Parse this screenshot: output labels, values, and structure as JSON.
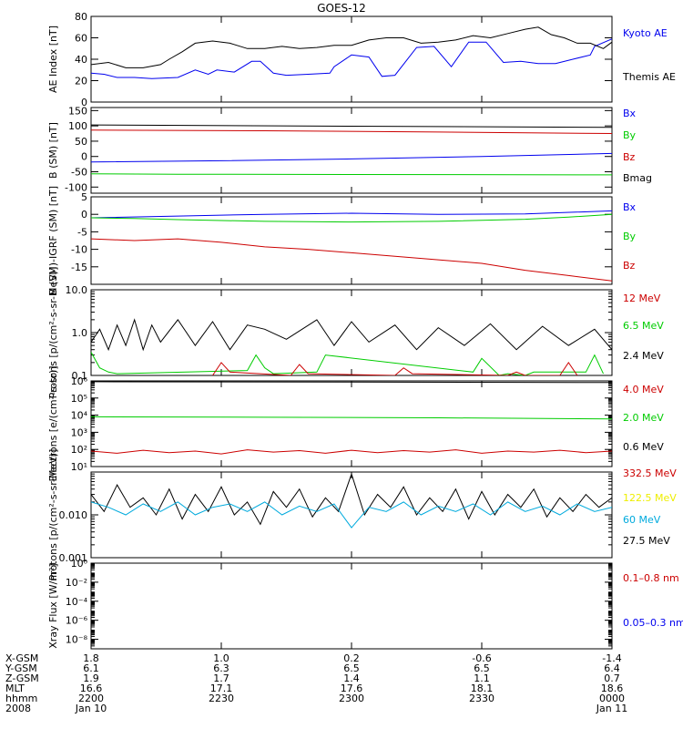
{
  "title": "GOES-12",
  "colors": {
    "black": "#000000",
    "blue": "#0000ee",
    "green": "#00cc00",
    "red": "#cc0000",
    "yellow": "#eeee00",
    "cyan": "#00aadd"
  },
  "chart_data": [
    {
      "type": "line",
      "id": "ae",
      "ylabel": "AE Index [nT]",
      "ylim": [
        0,
        80
      ],
      "yscale": "linear",
      "yticks": [
        "0",
        "20",
        "40",
        "60",
        "80"
      ],
      "series": [
        {
          "name": "Kyoto AE",
          "color": "blue",
          "x": [
            0,
            3,
            6,
            10,
            14,
            20,
            24,
            27,
            29,
            33,
            37,
            39,
            42,
            45,
            50,
            55,
            56,
            60,
            64,
            67,
            70,
            75,
            79,
            83,
            87,
            91,
            95,
            99,
            103,
            107,
            111,
            115,
            116,
            120
          ],
          "values": [
            27,
            26,
            23,
            23,
            22,
            23,
            30,
            26,
            30,
            28,
            38,
            38,
            27,
            25,
            26,
            27,
            33,
            44,
            42,
            24,
            25,
            51,
            52,
            33,
            56,
            56,
            37,
            38,
            36,
            36,
            40,
            44,
            52,
            59
          ]
        },
        {
          "name": "Themis AE",
          "color": "black",
          "x": [
            0,
            4,
            8,
            12,
            16,
            18,
            21,
            24,
            28,
            32,
            36,
            40,
            44,
            48,
            52,
            56,
            60,
            64,
            68,
            72,
            76,
            80,
            84,
            88,
            92,
            96,
            100,
            103,
            106,
            109,
            112,
            115,
            118,
            120
          ],
          "values": [
            35,
            37,
            32,
            32,
            35,
            40,
            47,
            55,
            57,
            55,
            50,
            50,
            52,
            50,
            51,
            53,
            53,
            58,
            60,
            60,
            55,
            56,
            58,
            62,
            60,
            64,
            68,
            70,
            63,
            60,
            55,
            55,
            50,
            56
          ]
        }
      ],
      "legend": [
        {
          "label": "Kyoto AE",
          "color": "blue"
        },
        {
          "label": "Themis AE",
          "color": "black"
        }
      ]
    },
    {
      "type": "line",
      "id": "bsm",
      "ylabel": "B (SM) [nT]",
      "ylim": [
        -120,
        160
      ],
      "yscale": "linear",
      "yticks": [
        "-100",
        "-50",
        "0",
        "50",
        "100",
        "150"
      ],
      "series": [
        {
          "name": "Bmag",
          "color": "black",
          "x": [
            0,
            60,
            120
          ],
          "values": [
            103,
            99,
            95
          ]
        },
        {
          "name": "Bx",
          "color": "blue",
          "x": [
            0,
            30,
            60,
            90,
            120
          ],
          "values": [
            -18,
            -14,
            -8,
            0,
            10
          ]
        },
        {
          "name": "By",
          "color": "green",
          "x": [
            0,
            20,
            120
          ],
          "values": [
            -57,
            -58,
            -60
          ]
        },
        {
          "name": "Bz",
          "color": "red",
          "x": [
            0,
            40,
            80,
            120
          ],
          "values": [
            86,
            84,
            80,
            75
          ]
        }
      ],
      "legend": [
        {
          "label": "Bx",
          "color": "blue"
        },
        {
          "label": "By",
          "color": "green"
        },
        {
          "label": "Bz",
          "color": "red"
        },
        {
          "label": "Bmag",
          "color": "black"
        }
      ]
    },
    {
      "type": "line",
      "id": "bigrf",
      "ylabel": "B (SM)-IGRF (SM) [nT]",
      "ylim": [
        -20,
        5
      ],
      "yscale": "linear",
      "yticks": [
        "-15",
        "-10",
        "-5",
        "0",
        "5"
      ],
      "series": [
        {
          "name": "Bx",
          "color": "blue",
          "x": [
            0,
            20,
            40,
            60,
            80,
            100,
            120
          ],
          "values": [
            -1,
            -0.5,
            0,
            0.3,
            0,
            0.1,
            1
          ]
        },
        {
          "name": "By",
          "color": "green",
          "x": [
            0,
            10,
            20,
            40,
            60,
            80,
            100,
            110,
            120
          ],
          "values": [
            -1,
            -1.2,
            -1.5,
            -2,
            -2.2,
            -2,
            -1.4,
            -0.8,
            0
          ]
        },
        {
          "name": "Bz",
          "color": "red",
          "x": [
            0,
            10,
            20,
            30,
            40,
            50,
            60,
            70,
            80,
            90,
            100,
            110,
            120
          ],
          "values": [
            -7,
            -7.5,
            -7,
            -8,
            -9.3,
            -10,
            -11,
            -12,
            -13,
            -14,
            -16,
            -17.5,
            -19
          ]
        }
      ],
      "legend": [
        {
          "label": "Bx",
          "color": "blue"
        },
        {
          "label": "By",
          "color": "green"
        },
        {
          "label": "Bz",
          "color": "red"
        }
      ]
    },
    {
      "type": "line",
      "id": "protons1",
      "ylabel": "Protons [p/(cm²-s-sr-MeV)]",
      "ylim": [
        0.1,
        10
      ],
      "yscale": "log",
      "yticks": [
        "0.1",
        "1.0",
        "10.0"
      ],
      "series": [
        {
          "name": "2.4 MeV",
          "color": "black",
          "x": [
            0,
            2,
            4,
            6,
            8,
            10,
            12,
            14,
            16,
            20,
            24,
            28,
            32,
            36,
            40,
            45,
            52,
            56,
            60,
            64,
            70,
            75,
            80,
            86,
            92,
            98,
            104,
            110,
            116,
            120
          ],
          "values": [
            0.6,
            1.2,
            0.4,
            1.5,
            0.5,
            2.0,
            0.4,
            1.5,
            0.6,
            2.0,
            0.5,
            1.8,
            0.4,
            1.5,
            1.2,
            0.7,
            2.0,
            0.5,
            1.8,
            0.6,
            1.5,
            0.4,
            1.3,
            0.5,
            1.6,
            0.4,
            1.4,
            0.5,
            1.2,
            0.4
          ]
        },
        {
          "name": "6.5 MeV",
          "color": "green",
          "x": [
            0,
            2,
            4,
            6,
            36,
            38,
            40,
            42,
            52,
            54,
            88,
            90,
            94,
            96,
            100,
            102,
            114,
            116,
            118
          ],
          "values": [
            0.35,
            0.15,
            0.12,
            0.11,
            0.13,
            0.3,
            0.15,
            0.11,
            0.12,
            0.3,
            0.12,
            0.25,
            0.1,
            0.11,
            0.1,
            0.12,
            0.12,
            0.3,
            0.11
          ]
        },
        {
          "name": "12 MeV",
          "color": "red",
          "x": [
            28,
            30,
            32,
            46,
            48,
            50,
            70,
            72,
            74,
            96,
            98,
            100,
            108,
            110,
            112
          ],
          "values": [
            0.1,
            0.2,
            0.12,
            0.1,
            0.18,
            0.11,
            0.1,
            0.15,
            0.11,
            0.1,
            0.12,
            0.1,
            0.1,
            0.2,
            0.1
          ]
        }
      ],
      "legend": [
        {
          "label": "12 MeV",
          "color": "red"
        },
        {
          "label": "6.5 MeV",
          "color": "green"
        },
        {
          "label": "2.4 MeV",
          "color": "black"
        }
      ]
    },
    {
      "type": "line",
      "id": "electrons",
      "ylabel": "Electrons [e/(cm²-s-sr)]",
      "ylim": [
        10,
        1000000
      ],
      "yscale": "log",
      "yticks": [
        "10¹",
        "10²",
        "10³",
        "10⁴",
        "10⁵",
        "10⁶"
      ],
      "series": [
        {
          "name": "0.6 MeV",
          "color": "black",
          "x": [
            0,
            60,
            120
          ],
          "values": [
            900000,
            850000,
            800000
          ]
        },
        {
          "name": "2.0 MeV",
          "color": "green",
          "x": [
            0,
            40,
            80,
            120
          ],
          "values": [
            8000,
            7500,
            7000,
            6000
          ]
        },
        {
          "name": "4.0 MeV",
          "color": "red",
          "x": [
            0,
            6,
            12,
            18,
            24,
            30,
            36,
            42,
            48,
            54,
            60,
            66,
            72,
            78,
            84,
            90,
            96,
            102,
            108,
            114,
            120
          ],
          "values": [
            80,
            60,
            90,
            65,
            80,
            55,
            95,
            70,
            85,
            60,
            90,
            65,
            85,
            70,
            95,
            60,
            80,
            70,
            90,
            65,
            80
          ]
        }
      ],
      "legend": [
        {
          "label": "4.0 MeV",
          "color": "red"
        },
        {
          "label": "2.0 MeV",
          "color": "green"
        },
        {
          "label": "0.6 MeV",
          "color": "black"
        }
      ]
    },
    {
      "type": "line",
      "id": "protons2",
      "ylabel": "Protons [p/(cm²-s-sr-MeV)]",
      "ylim": [
        0.001,
        0.1
      ],
      "yscale": "log",
      "yticks": [
        "0.001",
        "0.010"
      ],
      "series": [
        {
          "name": "27.5 MeV",
          "color": "black",
          "x": [
            0,
            3,
            6,
            9,
            12,
            15,
            18,
            21,
            24,
            27,
            30,
            33,
            36,
            39,
            42,
            45,
            48,
            51,
            54,
            57,
            60,
            63,
            66,
            69,
            72,
            75,
            78,
            81,
            84,
            87,
            90,
            93,
            96,
            99,
            102,
            105,
            108,
            111,
            114,
            117,
            120
          ],
          "values": [
            0.03,
            0.012,
            0.05,
            0.015,
            0.025,
            0.01,
            0.04,
            0.008,
            0.03,
            0.012,
            0.045,
            0.01,
            0.02,
            0.006,
            0.035,
            0.015,
            0.04,
            0.009,
            0.025,
            0.012,
            0.09,
            0.01,
            0.03,
            0.015,
            0.045,
            0.01,
            0.025,
            0.012,
            0.04,
            0.008,
            0.035,
            0.01,
            0.03,
            0.015,
            0.04,
            0.009,
            0.025,
            0.012,
            0.03,
            0.015,
            0.025
          ]
        },
        {
          "name": "60 MeV",
          "color": "cyan",
          "x": [
            0,
            4,
            8,
            12,
            16,
            20,
            24,
            28,
            32,
            36,
            40,
            44,
            48,
            52,
            56,
            60,
            64,
            68,
            72,
            76,
            80,
            84,
            88,
            92,
            96,
            100,
            104,
            108,
            112,
            116,
            120
          ],
          "values": [
            0.02,
            0.015,
            0.01,
            0.018,
            0.012,
            0.02,
            0.01,
            0.015,
            0.018,
            0.012,
            0.02,
            0.01,
            0.016,
            0.012,
            0.018,
            0.005,
            0.015,
            0.012,
            0.02,
            0.01,
            0.016,
            0.012,
            0.018,
            0.01,
            0.02,
            0.012,
            0.016,
            0.01,
            0.018,
            0.012,
            0.015
          ]
        }
      ],
      "legend": [
        {
          "label": "332.5 MeV",
          "color": "red"
        },
        {
          "label": "122.5 MeV",
          "color": "yellow"
        },
        {
          "label": "60 MeV",
          "color": "cyan"
        },
        {
          "label": "27.5 MeV",
          "color": "black"
        }
      ]
    },
    {
      "type": "line",
      "id": "xray",
      "ylabel": "Xray Flux [W/m²]",
      "ylim": [
        1e-09,
        1
      ],
      "yscale": "log",
      "yticks": [
        "10⁻⁸",
        "10⁻⁶",
        "10⁻⁴",
        "10⁻²",
        "10⁰"
      ],
      "series": [],
      "legend": [
        {
          "label": "0.1–0.8 nm",
          "color": "red"
        },
        {
          "label": "0.05–0.3 nm",
          "color": "blue"
        }
      ]
    }
  ],
  "footer": {
    "rows": [
      {
        "label": "X-GSM",
        "values": [
          "1.8",
          "1.0",
          "0.2",
          "-0.6",
          "-1.4"
        ]
      },
      {
        "label": "Y-GSM",
        "values": [
          "6.1",
          "6.3",
          "6.5",
          "6.5",
          "6.4"
        ]
      },
      {
        "label": "Z-GSM",
        "values": [
          "1.9",
          "1.7",
          "1.4",
          "1.1",
          "0.7"
        ]
      },
      {
        "label": "MLT",
        "values": [
          "16.6",
          "17.1",
          "17.6",
          "18.1",
          "18.6"
        ]
      },
      {
        "label": "hhmm",
        "values": [
          "2200",
          "2230",
          "2300",
          "2330",
          "0000"
        ]
      },
      {
        "label": "2008",
        "values": [
          "Jan 10",
          "",
          "",
          "",
          "Jan 11"
        ]
      }
    ]
  }
}
